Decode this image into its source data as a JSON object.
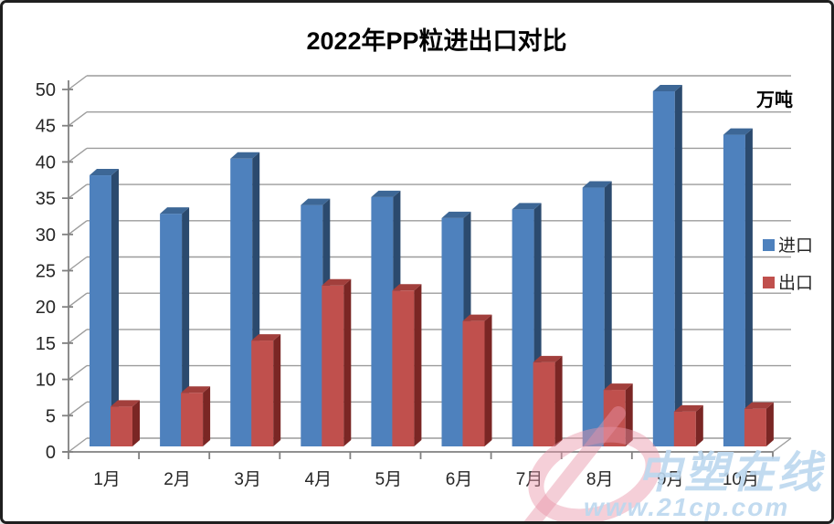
{
  "chart": {
    "title": "2022年PP粒进出口对比",
    "unit_label": "万吨",
    "y_ticks": [
      "0",
      "5",
      "10",
      "15",
      "20",
      "25",
      "30",
      "35",
      "40",
      "45",
      "50"
    ]
  },
  "chart_data": {
    "type": "bar",
    "style": "3d-clustered-column",
    "title": "2022年PP粒进出口对比",
    "ylabel": "万吨",
    "xlabel": "",
    "ylim": [
      0,
      50
    ],
    "y_step": 5,
    "grid": true,
    "legend_position": "right",
    "categories": [
      "1月",
      "2月",
      "3月",
      "4月",
      "5月",
      "6月",
      "7月",
      "8月",
      "9月",
      "10月"
    ],
    "y_ticks": [
      "0",
      "5",
      "10",
      "15",
      "20",
      "25",
      "30",
      "35",
      "40",
      "45",
      "50"
    ],
    "series": [
      {
        "name": "进口",
        "color": "#4E81BD",
        "top_color": "#3D6796",
        "side_color": "#2B4A6E",
        "values": [
          37.4,
          32.1,
          39.7,
          33.3,
          34.4,
          31.5,
          32.7,
          35.7,
          49.0,
          43.0
        ]
      },
      {
        "name": "出口",
        "color": "#C0504D",
        "top_color": "#A23F3C",
        "side_color": "#7A2624",
        "values": [
          5.5,
          7.4,
          14.6,
          22.2,
          21.5,
          17.3,
          11.6,
          7.8,
          4.8,
          5.2
        ]
      }
    ]
  },
  "watermark": {
    "brand": "中塑在线",
    "url": "www.21cp.com",
    "logo_color": "#E895A8",
    "text_color": "#BCD8EF"
  },
  "colors": {
    "gridline": "#9C9C9C",
    "axis": "#808080",
    "tick_text": "#262626",
    "title_text": "#000000"
  }
}
